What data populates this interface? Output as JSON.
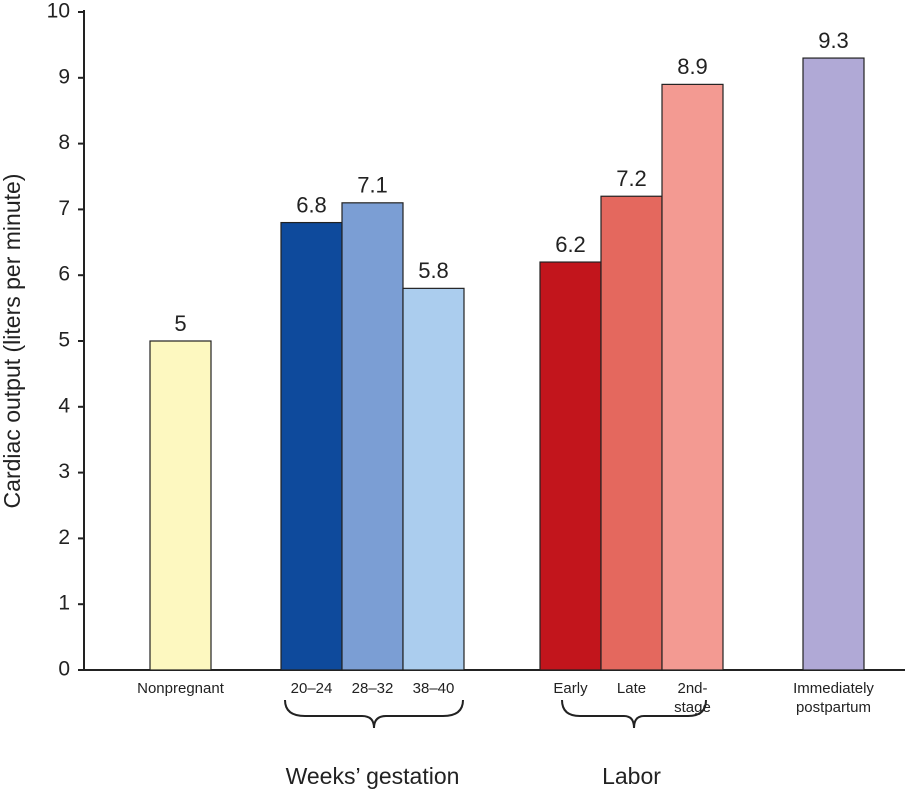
{
  "chart_data": {
    "type": "bar",
    "y_label": "Cardiac output (liters per minute)",
    "categories": [
      "Nonpregnant",
      "20–24",
      "28–32",
      "38–40",
      "Early",
      "Late",
      "2nd-stage",
      "Immediately postpartum"
    ],
    "values": [
      5,
      6.8,
      7.1,
      5.8,
      6.2,
      7.2,
      8.9,
      9.3
    ],
    "colors": [
      "#fdf8c0",
      "#0e4a9c",
      "#7b9ed4",
      "#abcdee",
      "#c2151c",
      "#e4685e",
      "#f39a92",
      "#b0a9d6"
    ],
    "groups": [
      {
        "label": "Weeks’ gestation",
        "members": [
          "20–24",
          "28–32",
          "38–40"
        ]
      },
      {
        "label": "Labor",
        "members": [
          "Early",
          "Late",
          "2nd-stage"
        ]
      }
    ],
    "ylim": [
      0,
      10
    ],
    "yticks": [
      0,
      1,
      2,
      3,
      4,
      5,
      6,
      7,
      8,
      9,
      10
    ]
  }
}
